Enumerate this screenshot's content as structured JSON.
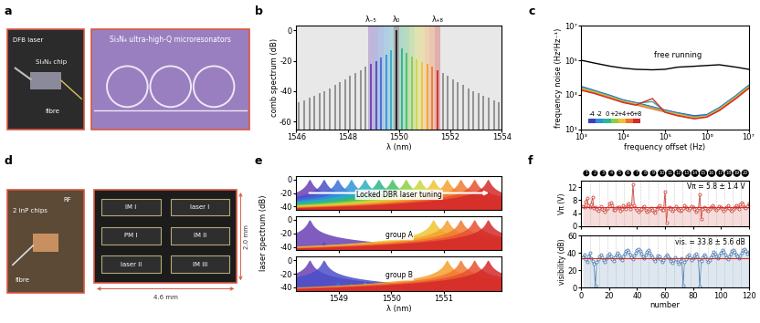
{
  "panels": {
    "a": {
      "label": "a",
      "photo_texts": [
        "DFB laser",
        "Si₃N₄ chip",
        "fibre"
      ],
      "chip_text": "Si₃N₄ ultra-high-Q microresonators"
    },
    "d": {
      "label": "d",
      "photo_texts": [
        "2 InP chips",
        "RF",
        "fibre"
      ],
      "chip_blocks": [
        "IM I",
        "PM I",
        "laser I",
        "laser II",
        "IM II",
        "IM III"
      ],
      "width_text": "4.6 mm",
      "height_text": "2.0 mm"
    }
  },
  "chart_data": [
    {
      "panel": "b",
      "type": "stem",
      "xlabel": "λ (nm)",
      "ylabel": "comb spectrum (dB)",
      "x": [
        1546.1,
        1546.3,
        1546.5,
        1546.7,
        1546.9,
        1547.1,
        1547.3,
        1547.5,
        1547.7,
        1547.9,
        1548.1,
        1548.3,
        1548.5,
        1548.7,
        1548.9,
        1549.1,
        1549.3,
        1549.5,
        1549.7,
        1549.9,
        1550.1,
        1550.3,
        1550.5,
        1550.7,
        1550.9,
        1551.1,
        1551.3,
        1551.5,
        1551.7,
        1551.9,
        1552.1,
        1552.3,
        1552.5,
        1552.7,
        1552.9,
        1553.1,
        1553.3,
        1553.5,
        1553.7,
        1553.9
      ],
      "values": [
        -47,
        -46,
        -44,
        -43,
        -41,
        -40,
        -38,
        -36,
        -34,
        -32,
        -30,
        -28,
        -26,
        -24,
        -22,
        -20,
        -18,
        -16,
        -13,
        0,
        -12,
        -15,
        -17,
        -19,
        -21,
        -22,
        -24,
        -26,
        -28,
        -30,
        -32,
        -34,
        -36,
        -38,
        -40,
        -41,
        -43,
        -44,
        -46,
        -47
      ],
      "colors": [
        "#8c8c8c",
        "#8c8c8c",
        "#8c8c8c",
        "#8c8c8c",
        "#8c8c8c",
        "#8c8c8c",
        "#8c8c8c",
        "#8c8c8c",
        "#8c8c8c",
        "#8c8c8c",
        "#8c8c8c",
        "#8c8c8c",
        "#8c8c8c",
        "#8c8c8c",
        "#6a3fb5",
        "#4a4fc8",
        "#3a6fd8",
        "#2f95d8",
        "#2cb0c0",
        "#1a1a1a",
        "#2cb58a",
        "#44c060",
        "#8ccf3f",
        "#c8d83a",
        "#f0c530",
        "#f5a030",
        "#f07a30",
        "#d42a2a",
        "#8c8c8c",
        "#8c8c8c",
        "#8c8c8c",
        "#8c8c8c",
        "#8c8c8c",
        "#8c8c8c",
        "#8c8c8c",
        "#8c8c8c",
        "#8c8c8c",
        "#8c8c8c",
        "#8c8c8c",
        "#8c8c8c"
      ],
      "markers": [
        {
          "label": "λ₋₅",
          "x": 1548.9
        },
        {
          "label": "λ₀",
          "x": 1549.9
        },
        {
          "label": "λ₊₈",
          "x": 1551.5
        }
      ],
      "xlim": [
        1546,
        1554
      ],
      "xticks": [
        1546,
        1548,
        1550,
        1552,
        1554
      ],
      "ylim": [
        -65,
        3
      ],
      "yticks": [
        -60,
        -40,
        -20,
        0
      ]
    },
    {
      "panel": "c",
      "type": "line",
      "log": true,
      "legend": "lower left",
      "xlabel": "frequency offset (Hz)",
      "ylabel": "frequency noise (Hz²Hz⁻¹)",
      "x": [
        1000,
        2000,
        5000,
        10000,
        20000,
        50000,
        100000,
        200000,
        500000,
        1000000,
        2000000,
        5000000,
        10000000
      ],
      "series": [
        {
          "name": "free running",
          "color": "#000000",
          "values": [
            100000,
            70000,
            45000,
            35000,
            30000,
            28000,
            30000,
            40000,
            45000,
            50000,
            55000,
            40000,
            30000
          ]
        },
        {
          "name": "-4",
          "color": "#3b3fc0",
          "values": [
            3000,
            1800,
            900,
            500,
            350,
            200,
            130,
            90,
            60,
            70,
            180,
            900,
            3500
          ]
        },
        {
          "name": "-2",
          "color": "#2f8fd8",
          "values": [
            2800,
            1700,
            850,
            480,
            330,
            190,
            120,
            85,
            55,
            65,
            170,
            850,
            3300
          ]
        },
        {
          "name": "0",
          "color": "#2cb59a",
          "values": [
            2600,
            1600,
            800,
            450,
            320,
            400,
            115,
            80,
            50,
            60,
            160,
            800,
            3100
          ]
        },
        {
          "name": "+2",
          "color": "#8fcf3f",
          "values": [
            2400,
            1500,
            750,
            420,
            300,
            170,
            110,
            75,
            48,
            58,
            150,
            750,
            2900
          ]
        },
        {
          "name": "+4",
          "color": "#f0c030",
          "values": [
            2200,
            1400,
            700,
            400,
            280,
            160,
            105,
            70,
            45,
            55,
            140,
            700,
            2700
          ]
        },
        {
          "name": "+6",
          "color": "#f07030",
          "values": [
            2000,
            1300,
            650,
            380,
            260,
            150,
            100,
            65,
            42,
            52,
            130,
            650,
            2500
          ]
        },
        {
          "name": "+8",
          "color": "#d42a2a",
          "values": [
            1800,
            1200,
            600,
            350,
            250,
            600,
            95,
            60,
            40,
            50,
            120,
            600,
            2300
          ]
        }
      ],
      "xlim": [
        1000,
        10000000
      ],
      "xticks": [
        {
          "value": 1000,
          "label": "10³"
        },
        {
          "value": 10000,
          "label": "10⁴"
        },
        {
          "value": 100000,
          "label": "10⁵"
        },
        {
          "value": 1000000,
          "label": "10⁶"
        },
        {
          "value": 10000000,
          "label": "10⁷"
        }
      ],
      "ylim": [
        10,
        10000000
      ],
      "yticks": [
        {
          "value": 10,
          "label": "10¹"
        },
        {
          "value": 1000,
          "label": "10³"
        },
        {
          "value": 100000,
          "label": "10⁵"
        },
        {
          "value": 10000000,
          "label": "10⁷"
        }
      ]
    },
    {
      "panel": "e",
      "type": "spectrum",
      "xlabel": "λ (nm)",
      "ylabel": "laser spectrum (dB)",
      "x": [
        1548.45,
        1548.72,
        1548.98,
        1549.24,
        1549.5,
        1549.76,
        1550.02,
        1550.28,
        1550.54,
        1550.8,
        1551.06,
        1551.32,
        1551.58,
        1551.84
      ],
      "colors": [
        "#6a3fb5",
        "#4a4fc8",
        "#3a6fd8",
        "#2f95d8",
        "#2cb0c0",
        "#2cb58a",
        "#44c060",
        "#8ccf3f",
        "#c8d83a",
        "#f0c530",
        "#f5a030",
        "#f07a30",
        "#e85030",
        "#d42a2a"
      ],
      "series": [
        {
          "name": "Locked DBR laser tuning",
          "values": [
            0,
            0,
            0,
            0,
            0,
            0,
            0,
            0,
            0,
            0,
            0,
            0,
            0,
            0
          ]
        },
        {
          "name": "group A",
          "values": [
            0,
            -32,
            -34,
            -33,
            -35,
            -31,
            -34,
            -33,
            -30,
            0,
            0,
            0,
            0,
            0
          ]
        },
        {
          "name": "group B",
          "values": [
            0,
            0,
            -31,
            -34,
            -32,
            -35,
            -33,
            -34,
            -31,
            -33,
            0,
            0,
            0,
            0
          ]
        }
      ],
      "xlim": [
        1548.2,
        1552.1
      ],
      "xticks": [
        1549,
        1550,
        1551
      ],
      "ylim": [
        -45,
        5
      ],
      "yticks": [
        -40,
        -20,
        0
      ]
    },
    {
      "panel": "f",
      "type": "line",
      "ylabel": "Vπ (V)",
      "annotation": "Vπ = 5.8 ± 1.4 V",
      "mean": 5.8,
      "color": "#d0443a",
      "marker": "o",
      "line_style": "solid",
      "tick_labels": "y",
      "chips": [
        "1",
        "2",
        "3",
        "4",
        "5",
        "6",
        "7",
        "8",
        "9",
        "10",
        "11",
        "12",
        "13",
        "14",
        "15",
        "16",
        "17",
        "18",
        "19",
        "20"
      ],
      "x": [
        1,
        2,
        3,
        4,
        5,
        6,
        7,
        8,
        9,
        10,
        11,
        12,
        13,
        14,
        15,
        16,
        17,
        18,
        19,
        20,
        21,
        22,
        23,
        24,
        25,
        26,
        27,
        28,
        29,
        30,
        31,
        32,
        33,
        34,
        35,
        36,
        37,
        38,
        39,
        40,
        41,
        42,
        43,
        44,
        45,
        46,
        47,
        48,
        49,
        50,
        51,
        52,
        53,
        54,
        55,
        56,
        57,
        58,
        59,
        60,
        61,
        62,
        63,
        64,
        65,
        66,
        67,
        68,
        69,
        70,
        71,
        72,
        73,
        74,
        75,
        76,
        77,
        78,
        79,
        80,
        81,
        82,
        83,
        84,
        85,
        86,
        87,
        88,
        89,
        90,
        91,
        92,
        93,
        94,
        95,
        96,
        97,
        98,
        99,
        100,
        101,
        102,
        103,
        104,
        105,
        106,
        107,
        108,
        109,
        110,
        111,
        112,
        113,
        114,
        115,
        116,
        117,
        118,
        119,
        120
      ],
      "values": [
        6.2,
        5.8,
        7.5,
        8.6,
        6.4,
        5.9,
        6.8,
        9.1,
        5.5,
        6.0,
        5.2,
        4.8,
        5.6,
        6.1,
        5.4,
        5.0,
        4.6,
        5.3,
        5.7,
        6.9,
        7.2,
        6.5,
        5.1,
        4.9,
        5.5,
        6.0,
        5.8,
        4.7,
        5.2,
        6.3,
        5.9,
        5.4,
        6.6,
        7.0,
        5.3,
        6.1,
        12.8,
        6.4,
        5.6,
        5.0,
        4.5,
        4.9,
        5.3,
        5.8,
        6.2,
        5.1,
        4.4,
        4.8,
        5.2,
        5.7,
        5.0,
        4.6,
        4.3,
        5.4,
        5.9,
        6.3,
        5.5,
        5.1,
        4.9,
        10.8,
        1.2,
        5.6,
        6.0,
        5.3,
        4.8,
        5.2,
        5.7,
        6.1,
        5.4,
        5.0,
        4.7,
        5.1,
        5.6,
        6.4,
        5.9,
        5.3,
        4.9,
        5.5,
        6.2,
        5.8,
        5.2,
        4.6,
        5.0,
        5.7,
        9.8,
        2.1,
        5.4,
        6.0,
        5.5,
        5.1,
        4.8,
        5.3,
        5.9,
        6.5,
        6.0,
        5.4,
        4.9,
        5.6,
        6.2,
        5.8,
        5.3,
        4.7,
        5.2,
        5.8,
        6.3,
        5.7,
        5.1,
        4.8,
        5.4,
        6.0,
        6.5,
        5.9,
        5.4,
        6.8,
        7.4,
        6.6,
        6.0,
        5.5,
        6.2,
        6.9
      ],
      "xlim": [
        0,
        120
      ],
      "xticks": [
        0,
        20,
        40,
        60,
        80,
        100,
        120
      ],
      "ylim": [
        0,
        14
      ],
      "yticks": [
        0,
        4,
        8,
        12
      ]
    },
    {
      "type": "line",
      "xlabel": "number",
      "ylabel": "visibility (dB)",
      "annotation": "vis. = 33.8 ± 5.6 dB",
      "mean": 33.8,
      "color": "#4a7bb0",
      "marker": "o",
      "line_style": "solid",
      "x": [
        1,
        2,
        3,
        4,
        5,
        6,
        7,
        8,
        9,
        10,
        11,
        12,
        13,
        14,
        15,
        16,
        17,
        18,
        19,
        20,
        21,
        22,
        23,
        24,
        25,
        26,
        27,
        28,
        29,
        30,
        31,
        32,
        33,
        34,
        35,
        36,
        37,
        38,
        39,
        40,
        41,
        42,
        43,
        44,
        45,
        46,
        47,
        48,
        49,
        50,
        51,
        52,
        53,
        54,
        55,
        56,
        57,
        58,
        59,
        60,
        61,
        62,
        63,
        64,
        65,
        66,
        67,
        68,
        69,
        70,
        71,
        72,
        73,
        74,
        75,
        76,
        77,
        78,
        79,
        80,
        81,
        82,
        83,
        84,
        85,
        86,
        87,
        88,
        89,
        90,
        91,
        92,
        93,
        94,
        95,
        96,
        97,
        98,
        99,
        100,
        101,
        102,
        103,
        104,
        105,
        106,
        107,
        108,
        109,
        110,
        111,
        112,
        113,
        114,
        115,
        116,
        117,
        118,
        119,
        120
      ],
      "values": [
        35,
        38,
        33,
        30,
        36,
        40,
        34,
        31,
        28,
        2,
        30,
        33,
        36,
        38,
        35,
        32,
        30,
        34,
        37,
        39,
        36,
        33,
        31,
        35,
        38,
        40,
        37,
        34,
        32,
        36,
        39,
        42,
        44,
        41,
        38,
        35,
        33,
        37,
        40,
        43,
        45,
        42,
        39,
        36,
        34,
        38,
        41,
        44,
        40,
        37,
        35,
        33,
        31,
        34,
        37,
        36,
        33,
        30,
        32,
        35,
        38,
        36,
        34,
        31,
        29,
        32,
        35,
        33,
        30,
        28,
        31,
        34,
        2,
        30,
        33,
        36,
        38,
        35,
        32,
        34,
        37,
        39,
        36,
        33,
        1,
        31,
        35,
        38,
        36,
        33,
        30,
        32,
        35,
        38,
        41,
        39,
        36,
        34,
        37,
        40,
        43,
        41,
        38,
        35,
        33,
        36,
        39,
        42,
        44,
        41,
        38,
        36,
        34,
        37,
        40,
        43,
        45,
        42,
        39,
        41
      ],
      "xlim": [
        0,
        120
      ],
      "xticks": [
        0,
        20,
        40,
        60,
        80,
        100,
        120
      ],
      "ylim": [
        0,
        60
      ],
      "yticks": [
        0,
        20,
        40,
        60
      ]
    }
  ]
}
